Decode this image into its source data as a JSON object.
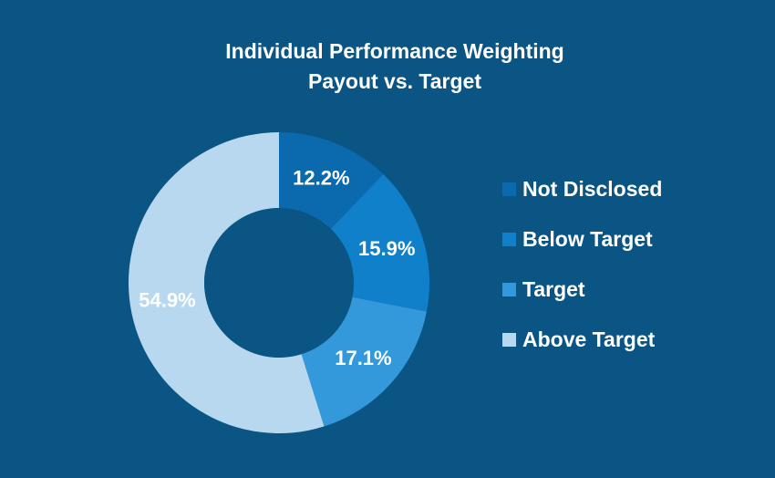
{
  "chart_data": {
    "type": "pie",
    "title": "Individual Performance Weighting",
    "subtitle": "Payout vs. Target",
    "series": [
      {
        "name": "Not Disclosed",
        "value": 12.2,
        "label": "12.2%",
        "color": "#0b6aad"
      },
      {
        "name": "Below Target",
        "value": 15.9,
        "label": "15.9%",
        "color": "#1180ca"
      },
      {
        "name": "Target",
        "value": 17.1,
        "label": "17.1%",
        "color": "#3399db"
      },
      {
        "name": "Above Target",
        "value": 54.9,
        "label": "54.9%",
        "color": "#b8d8f0"
      }
    ],
    "legend_position": "right",
    "background_color": "#0b5585"
  }
}
